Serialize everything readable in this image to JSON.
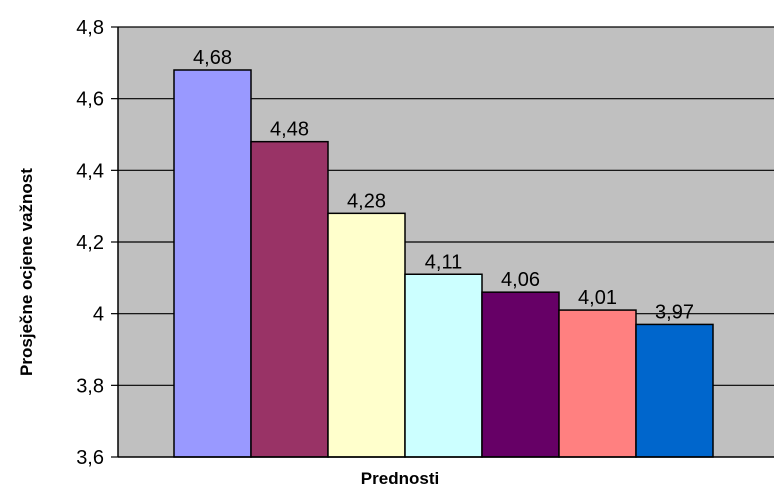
{
  "chart_data": {
    "type": "bar",
    "xlabel": "Prednosti",
    "ylabel": "Prosječne ocjene važnost",
    "ylim": [
      3.6,
      4.8
    ],
    "ytick_step": 0.2,
    "yticks": [
      "3,6",
      "3,8",
      "4",
      "4,2",
      "4,4",
      "4,6",
      "4,8"
    ],
    "grid": true,
    "legend": "none",
    "values": [
      4.68,
      4.48,
      4.28,
      4.11,
      4.06,
      4.01,
      3.97
    ],
    "value_labels": [
      "4,68",
      "4,48",
      "4,28",
      "4,11",
      "4,06",
      "4,01",
      "3,97"
    ],
    "colors": [
      "#9999ff",
      "#993366",
      "#ffffcc",
      "#ccffff",
      "#660066",
      "#ff8080",
      "#0066cc"
    ],
    "plot_background": "#c0c0c0"
  }
}
